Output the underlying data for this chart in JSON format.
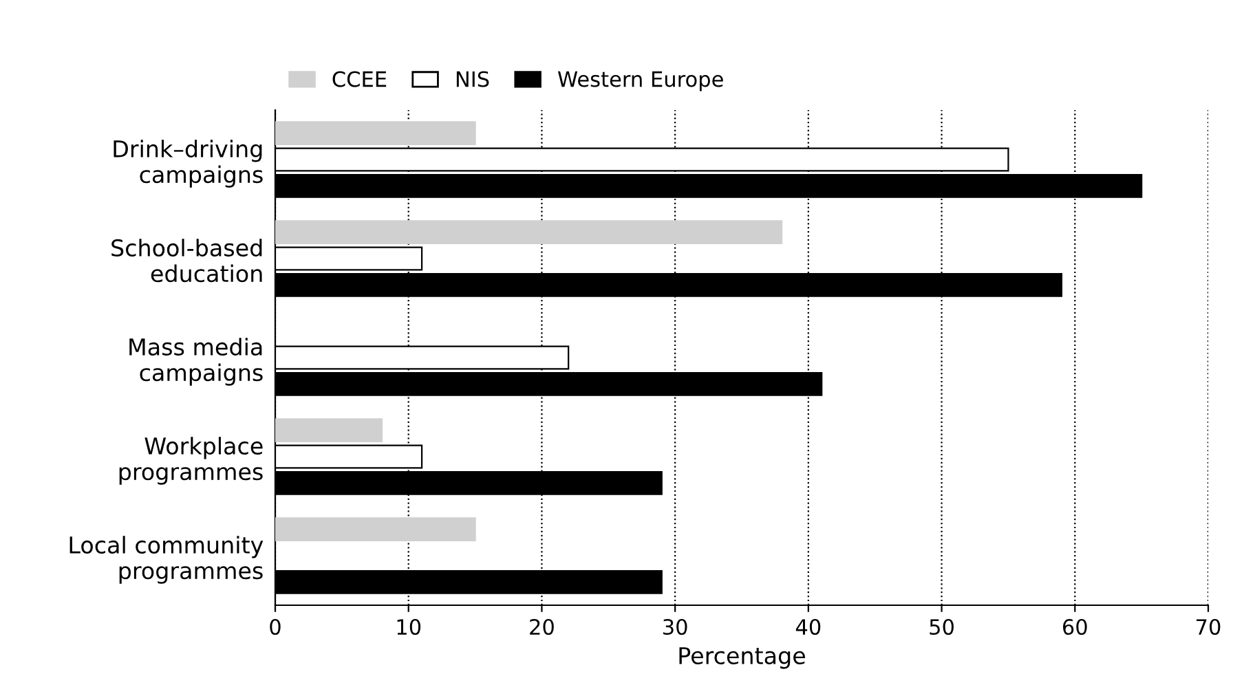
{
  "chart_data": {
    "type": "bar",
    "orientation": "horizontal",
    "xlabel": "Percentage",
    "categories": [
      "Drink–driving\ncampaigns",
      "School-based\neducation",
      "Mass media\ncampaigns",
      "Workplace\nprogrammes",
      "Local community\nprogrammes"
    ],
    "series": [
      {
        "name": "CCEE",
        "color": "#d0d0d0",
        "values": [
          15,
          38,
          null,
          8,
          15
        ]
      },
      {
        "name": "NIS",
        "color": "#ffffff",
        "values": [
          55,
          11,
          22,
          11,
          null
        ]
      },
      {
        "name": "Western Europe",
        "color": "#000000",
        "values": [
          65,
          59,
          41,
          29,
          29
        ]
      }
    ],
    "xlim": [
      0,
      70
    ],
    "xticks": [
      0,
      10,
      20,
      30,
      40,
      50,
      60,
      70
    ],
    "grid": "x",
    "legend": "top left"
  }
}
